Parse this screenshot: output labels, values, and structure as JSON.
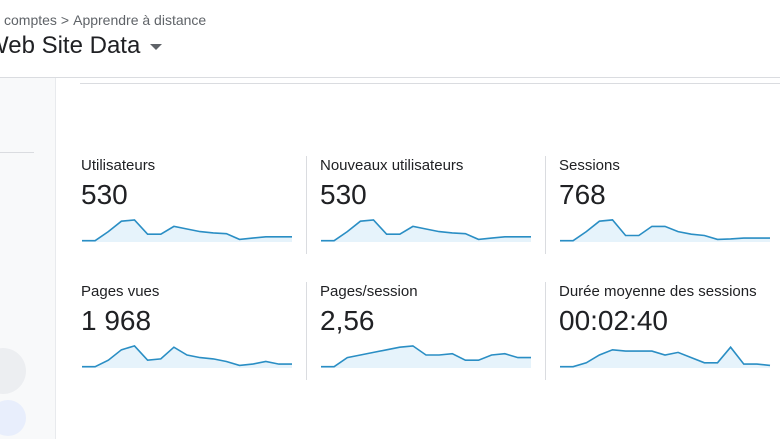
{
  "breadcrumb": [
    "comptes",
    "Apprendre à distance"
  ],
  "title": "Web Site Data",
  "sparkline_color": "#2a8ec4",
  "sparkline_fill": "#e6f3fb",
  "metrics": [
    {
      "label": "Utilisateurs",
      "value": "530",
      "sparkline": [
        0.5,
        0.5,
        4,
        8,
        8.5,
        3,
        3,
        6,
        5,
        4,
        3.5,
        3.2,
        1,
        1.5,
        2,
        2,
        2
      ]
    },
    {
      "label": "Nouveaux utilisateurs",
      "value": "530",
      "sparkline": [
        0.5,
        0.5,
        4,
        8,
        8.5,
        3,
        3,
        6,
        5,
        4,
        3.5,
        3.2,
        1,
        1.5,
        2,
        2,
        2
      ]
    },
    {
      "label": "Sessions",
      "value": "768",
      "sparkline": [
        0.5,
        0.5,
        4,
        8,
        8.5,
        2.5,
        2.5,
        6,
        6,
        4,
        3,
        2.5,
        1,
        1.2,
        1.5,
        1.5,
        1.5
      ]
    },
    {
      "label": "Pages vues",
      "value": "1 968",
      "sparkline": [
        0.5,
        0.5,
        3,
        7,
        8.5,
        3,
        3.5,
        8,
        5,
        4,
        3.5,
        2.5,
        1,
        1.5,
        2.5,
        1.5,
        1.5
      ]
    },
    {
      "label": "Pages/session",
      "value": "2,56",
      "sparkline": [
        0.5,
        0.5,
        4,
        5,
        6,
        7,
        8,
        8.5,
        5,
        5,
        5.5,
        3,
        3,
        5,
        5.5,
        4,
        4
      ]
    },
    {
      "label": "Durée moyenne des sessions",
      "value": "00:02:40",
      "sparkline": [
        0.5,
        0.5,
        2,
        5,
        7,
        6.5,
        6.5,
        6.5,
        5,
        6,
        4,
        2,
        2,
        8,
        1.5,
        1.5,
        1
      ]
    }
  ]
}
